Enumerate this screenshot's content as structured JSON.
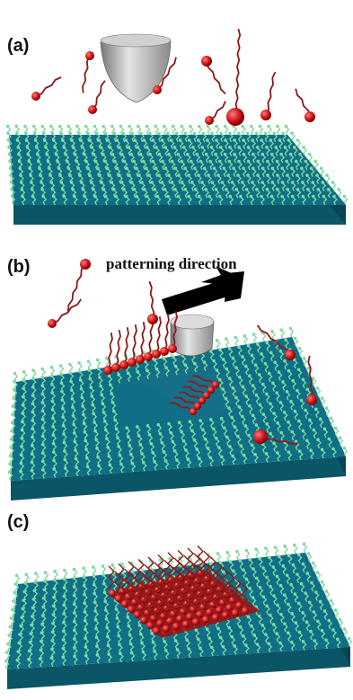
{
  "panels": {
    "a": {
      "label": "(a)"
    },
    "b": {
      "label": "(b)",
      "annotation": "patterning direction"
    },
    "c": {
      "label": "(c)"
    }
  },
  "colors": {
    "substrate_top": "#0e6f86",
    "substrate_side": "#0a5566",
    "monolayer": "#7fd9a0",
    "molecule_chain": "#8b1a1a",
    "molecule_head": "#cc1111",
    "tip": "#b8b8b8",
    "arrow": "#000000"
  },
  "icons": {
    "afm_tip": "afm-tip-icon",
    "direction_arrow": "arrow-icon"
  }
}
